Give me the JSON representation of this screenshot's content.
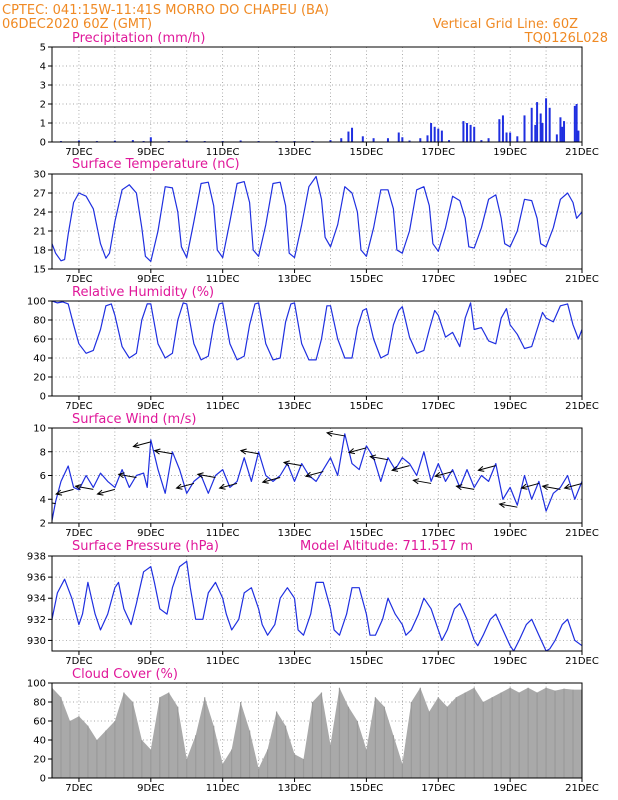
{
  "header": {
    "line1": "CPTEC:  041:15W-11:41S  MORRO DO CHAPEU (BA)",
    "line2": "06DEC2020 60Z (GMT)",
    "grid_note": "Vertical Grid Line: 60Z",
    "model_code": "TQ0126L028"
  },
  "colors": {
    "series": "#1f2fe0",
    "wind_arrow": "#000000",
    "cloud": "#a9a9a9",
    "title_text": "#e0189a",
    "header_text": "#f08a24"
  },
  "x_axis": {
    "start_day": 6.25,
    "end_day": 21.0,
    "tick_days": [
      7,
      9,
      11,
      13,
      15,
      17,
      19,
      21
    ],
    "tick_labels": [
      "7DEC",
      "9DEC",
      "11DEC",
      "13DEC",
      "15DEC",
      "17DEC",
      "19DEC",
      "21DEC"
    ],
    "grid_days": [
      7,
      8,
      9,
      10,
      11,
      12,
      13,
      14,
      15,
      16,
      17,
      18,
      19,
      20
    ]
  },
  "chart_data": [
    {
      "id": "precip",
      "type": "bar",
      "title": "Precipitation (mm/h)",
      "ylim": [
        0,
        5
      ],
      "yticks": [
        0,
        1,
        2,
        3,
        4,
        5
      ],
      "x": [
        6.5,
        7.0,
        7.5,
        8.0,
        8.5,
        8.8,
        9.0,
        9.5,
        10.0,
        10.5,
        11.0,
        11.5,
        12.0,
        12.5,
        13.0,
        13.5,
        14.0,
        14.3,
        14.5,
        14.6,
        14.9,
        15.2,
        15.6,
        15.9,
        16.0,
        16.2,
        16.5,
        16.7,
        16.8,
        16.9,
        17.0,
        17.1,
        17.3,
        17.7,
        17.8,
        17.9,
        18.0,
        18.2,
        18.4,
        18.7,
        18.8,
        18.9,
        19.0,
        19.2,
        19.4,
        19.6,
        19.7,
        19.75,
        19.85,
        19.9,
        20.0,
        20.1,
        20.3,
        20.4,
        20.45,
        20.5,
        20.8,
        20.85,
        20.9
      ],
      "values": [
        0.05,
        0.08,
        0.05,
        0.07,
        0.1,
        0.05,
        0.25,
        0.05,
        0.08,
        0.05,
        0.05,
        0.08,
        0.05,
        0.05,
        0.05,
        0.05,
        0.1,
        0.2,
        0.55,
        0.75,
        0.3,
        0.2,
        0.2,
        0.5,
        0.25,
        0.08,
        0.2,
        0.35,
        1.0,
        0.8,
        0.7,
        0.6,
        0.1,
        1.1,
        1.0,
        0.9,
        0.8,
        0.1,
        0.2,
        1.2,
        1.4,
        0.5,
        0.5,
        0.3,
        1.4,
        1.8,
        0.9,
        2.1,
        1.5,
        1.0,
        2.3,
        1.8,
        0.4,
        1.3,
        0.8,
        1.1,
        1.9,
        2.0,
        0.6
      ]
    },
    {
      "id": "temp",
      "type": "line",
      "title": "Surface Temperature (nC)",
      "ylim": [
        15,
        30
      ],
      "yticks": [
        15,
        18,
        21,
        24,
        27,
        30
      ],
      "x": [
        6.25,
        6.35,
        6.5,
        6.6,
        6.7,
        6.85,
        7.0,
        7.2,
        7.4,
        7.6,
        7.75,
        7.85,
        8.0,
        8.2,
        8.4,
        8.6,
        8.75,
        8.85,
        9.0,
        9.2,
        9.4,
        9.6,
        9.75,
        9.85,
        10.0,
        10.2,
        10.4,
        10.6,
        10.75,
        10.85,
        11.0,
        11.2,
        11.4,
        11.6,
        11.75,
        11.85,
        12.0,
        12.2,
        12.4,
        12.6,
        12.75,
        12.85,
        13.0,
        13.2,
        13.4,
        13.6,
        13.75,
        13.85,
        14.0,
        14.2,
        14.4,
        14.6,
        14.75,
        14.85,
        15.0,
        15.2,
        15.4,
        15.6,
        15.75,
        15.85,
        16.0,
        16.2,
        16.4,
        16.6,
        16.75,
        16.85,
        17.0,
        17.2,
        17.4,
        17.6,
        17.75,
        17.85,
        18.0,
        18.2,
        18.4,
        18.6,
        18.75,
        18.85,
        19.0,
        19.2,
        19.4,
        19.6,
        19.75,
        19.85,
        20.0,
        20.2,
        20.4,
        20.6,
        20.75,
        20.85,
        21.0
      ],
      "values": [
        19,
        17.5,
        16.3,
        16.5,
        20.5,
        25.5,
        27.0,
        26.5,
        24.5,
        19.0,
        16.7,
        17.5,
        22.5,
        27.5,
        28.3,
        27.0,
        21.5,
        17.0,
        16.2,
        21.0,
        28.0,
        27.8,
        24.0,
        18.5,
        16.8,
        22.5,
        28.5,
        28.7,
        25.0,
        18.0,
        16.8,
        22.5,
        28.5,
        28.8,
        25.5,
        18.0,
        17.0,
        22.0,
        28.5,
        28.7,
        25.0,
        17.5,
        16.8,
        22.0,
        28.0,
        29.6,
        26.0,
        20.0,
        18.5,
        22.0,
        28.0,
        27.0,
        24.0,
        18.0,
        17.0,
        21.5,
        27.5,
        27.5,
        24.5,
        18.0,
        17.5,
        21.0,
        27.5,
        28.0,
        25.0,
        19.0,
        17.8,
        21.5,
        26.5,
        25.8,
        23.0,
        18.5,
        18.3,
        21.5,
        26.0,
        26.7,
        23.0,
        19.0,
        18.5,
        21.0,
        26.0,
        25.8,
        23.0,
        19.0,
        18.5,
        21.5,
        26.0,
        27.0,
        25.5,
        23.0,
        24.0
      ]
    },
    {
      "id": "rh",
      "type": "line",
      "title": "Relative Humidity (%)",
      "ylim": [
        0,
        100
      ],
      "yticks": [
        0,
        20,
        40,
        60,
        80,
        100
      ],
      "x": [
        6.25,
        6.4,
        6.55,
        6.7,
        6.85,
        7.0,
        7.2,
        7.4,
        7.6,
        7.75,
        7.9,
        8.0,
        8.2,
        8.4,
        8.6,
        8.75,
        8.9,
        9.0,
        9.2,
        9.4,
        9.6,
        9.75,
        9.9,
        10.0,
        10.2,
        10.4,
        10.6,
        10.75,
        10.9,
        11.0,
        11.2,
        11.4,
        11.6,
        11.75,
        11.9,
        12.0,
        12.2,
        12.4,
        12.6,
        12.75,
        12.9,
        13.0,
        13.2,
        13.4,
        13.6,
        13.75,
        13.9,
        14.0,
        14.2,
        14.4,
        14.6,
        14.75,
        14.9,
        15.0,
        15.2,
        15.4,
        15.6,
        15.75,
        15.9,
        16.0,
        16.2,
        16.4,
        16.6,
        16.75,
        16.9,
        17.0,
        17.2,
        17.4,
        17.6,
        17.75,
        17.9,
        18.0,
        18.2,
        18.4,
        18.6,
        18.75,
        18.9,
        19.0,
        19.2,
        19.4,
        19.6,
        19.75,
        19.9,
        20.0,
        20.2,
        20.4,
        20.6,
        20.75,
        20.9,
        21.0
      ],
      "values": [
        100,
        98,
        99,
        97,
        75,
        55,
        45,
        48,
        70,
        95,
        97,
        85,
        52,
        40,
        45,
        80,
        97,
        97,
        55,
        40,
        45,
        80,
        98,
        97,
        55,
        38,
        42,
        75,
        97,
        98,
        55,
        38,
        42,
        75,
        97,
        98,
        55,
        38,
        40,
        78,
        97,
        98,
        55,
        38,
        38,
        60,
        95,
        95,
        60,
        40,
        40,
        72,
        90,
        92,
        60,
        40,
        44,
        75,
        90,
        94,
        62,
        45,
        48,
        70,
        90,
        85,
        62,
        67,
        52,
        82,
        98,
        70,
        72,
        58,
        55,
        82,
        92,
        75,
        65,
        50,
        52,
        70,
        88,
        82,
        78,
        95,
        97,
        75,
        60,
        70
      ]
    },
    {
      "id": "wind",
      "type": "line",
      "title": "Surface Wind (m/s)",
      "ylim": [
        2,
        10
      ],
      "yticks": [
        2,
        4,
        6,
        8,
        10
      ],
      "x": [
        6.25,
        6.35,
        6.5,
        6.7,
        6.85,
        7.0,
        7.2,
        7.4,
        7.6,
        7.8,
        8.0,
        8.2,
        8.4,
        8.6,
        8.8,
        8.9,
        9.0,
        9.2,
        9.4,
        9.6,
        9.8,
        10.0,
        10.2,
        10.4,
        10.6,
        10.8,
        11.0,
        11.2,
        11.4,
        11.6,
        11.8,
        12.0,
        12.2,
        12.4,
        12.6,
        12.8,
        13.0,
        13.2,
        13.4,
        13.6,
        13.8,
        14.0,
        14.2,
        14.4,
        14.6,
        14.8,
        15.0,
        15.2,
        15.4,
        15.6,
        15.8,
        16.0,
        16.2,
        16.4,
        16.6,
        16.8,
        17.0,
        17.2,
        17.4,
        17.6,
        17.8,
        18.0,
        18.2,
        18.4,
        18.6,
        18.8,
        19.0,
        19.2,
        19.4,
        19.6,
        19.8,
        20.0,
        20.2,
        20.4,
        20.6,
        20.8,
        21.0
      ],
      "values": [
        2.2,
        3.8,
        5.5,
        6.8,
        5.0,
        4.8,
        6.0,
        5.0,
        6.2,
        5.5,
        5.0,
        6.5,
        5.0,
        6.0,
        6.2,
        5.0,
        9.0,
        6.5,
        4.5,
        8.0,
        6.5,
        4.5,
        5.5,
        6.0,
        4.5,
        6.0,
        6.5,
        5.0,
        5.5,
        7.5,
        5.5,
        8.0,
        6.0,
        5.5,
        6.0,
        7.0,
        5.5,
        7.0,
        6.0,
        5.5,
        6.5,
        7.5,
        6.0,
        9.5,
        7.0,
        6.5,
        8.5,
        7.5,
        5.5,
        7.5,
        6.5,
        7.5,
        7.0,
        6.0,
        8.0,
        5.5,
        7.0,
        5.5,
        6.5,
        5.0,
        6.5,
        5.0,
        6.0,
        5.5,
        7.0,
        4.0,
        5.0,
        3.5,
        6.0,
        4.0,
        5.5,
        3.0,
        4.5,
        5.0,
        6.0,
        4.0,
        5.5
      ]
    },
    {
      "id": "pres",
      "type": "line",
      "title": "Surface Pressure (hPa)",
      "annotation": "Model Altitude: 711.517 m",
      "ylim": [
        929,
        938
      ],
      "yticks": [
        930,
        932,
        934,
        936,
        938
      ],
      "x": [
        6.25,
        6.4,
        6.6,
        6.8,
        7.0,
        7.1,
        7.25,
        7.45,
        7.6,
        7.8,
        8.0,
        8.1,
        8.25,
        8.45,
        8.6,
        8.8,
        9.0,
        9.1,
        9.25,
        9.45,
        9.6,
        9.8,
        10.0,
        10.1,
        10.25,
        10.45,
        10.6,
        10.8,
        11.0,
        11.1,
        11.25,
        11.45,
        11.6,
        11.8,
        12.0,
        12.1,
        12.25,
        12.45,
        12.6,
        12.8,
        13.0,
        13.1,
        13.25,
        13.45,
        13.6,
        13.8,
        14.0,
        14.1,
        14.25,
        14.45,
        14.6,
        14.8,
        15.0,
        15.1,
        15.25,
        15.45,
        15.6,
        15.8,
        16.0,
        16.1,
        16.25,
        16.45,
        16.6,
        16.8,
        17.0,
        17.1,
        17.25,
        17.45,
        17.6,
        17.8,
        18.0,
        18.1,
        18.25,
        18.45,
        18.6,
        18.8,
        19.0,
        19.1,
        19.25,
        19.45,
        19.6,
        19.8,
        20.0,
        20.1,
        20.25,
        20.45,
        20.6,
        20.8,
        21.0
      ],
      "values": [
        932.0,
        934.5,
        935.8,
        934.0,
        931.5,
        932.5,
        935.5,
        932.5,
        931.0,
        932.5,
        935.0,
        935.5,
        933.0,
        931.5,
        933.5,
        936.5,
        937.0,
        935.5,
        933.0,
        932.5,
        935.0,
        937.0,
        937.5,
        935.0,
        932.0,
        932.0,
        934.5,
        935.5,
        934.0,
        932.5,
        931.0,
        932.0,
        934.5,
        935.0,
        933.0,
        931.5,
        930.5,
        931.5,
        934.0,
        935.0,
        934.0,
        931.0,
        930.5,
        932.5,
        935.5,
        935.5,
        933.0,
        931.0,
        930.5,
        932.5,
        935.0,
        935.0,
        932.5,
        930.5,
        930.5,
        932.0,
        934.0,
        932.5,
        931.5,
        930.5,
        931.0,
        932.5,
        934.0,
        933.0,
        931.0,
        930.0,
        931.0,
        933.0,
        933.5,
        932.0,
        930.0,
        929.5,
        930.5,
        932.0,
        932.5,
        931.0,
        929.5,
        929.0,
        930.0,
        931.5,
        932.0,
        930.5,
        929.0,
        929.2,
        930.0,
        931.5,
        932.0,
        930.0,
        929.5
      ]
    },
    {
      "id": "cloud",
      "type": "bar",
      "title": "Cloud Cover (%)",
      "ylim": [
        0,
        100
      ],
      "yticks": [
        0,
        20,
        40,
        60,
        80,
        100
      ],
      "x": [
        6.25,
        6.5,
        6.75,
        7.0,
        7.25,
        7.5,
        7.75,
        8.0,
        8.25,
        8.5,
        8.75,
        9.0,
        9.25,
        9.5,
        9.75,
        10.0,
        10.25,
        10.5,
        10.75,
        11.0,
        11.25,
        11.5,
        11.75,
        12.0,
        12.25,
        12.5,
        12.75,
        13.0,
        13.25,
        13.5,
        13.75,
        14.0,
        14.25,
        14.5,
        14.75,
        15.0,
        15.25,
        15.5,
        15.75,
        16.0,
        16.25,
        16.5,
        16.75,
        17.0,
        17.25,
        17.5,
        17.75,
        18.0,
        18.25,
        18.5,
        18.75,
        19.0,
        19.25,
        19.5,
        19.75,
        20.0,
        20.25,
        20.5,
        20.75
      ],
      "values": [
        95,
        85,
        60,
        65,
        55,
        40,
        50,
        60,
        90,
        80,
        40,
        30,
        85,
        90,
        75,
        20,
        45,
        85,
        55,
        15,
        30,
        80,
        50,
        10,
        30,
        70,
        55,
        25,
        20,
        80,
        90,
        35,
        95,
        75,
        60,
        30,
        85,
        75,
        45,
        15,
        80,
        95,
        70,
        85,
        75,
        85,
        90,
        95,
        80,
        85,
        90,
        95,
        90,
        95,
        90,
        95,
        92,
        94,
        93
      ]
    }
  ]
}
